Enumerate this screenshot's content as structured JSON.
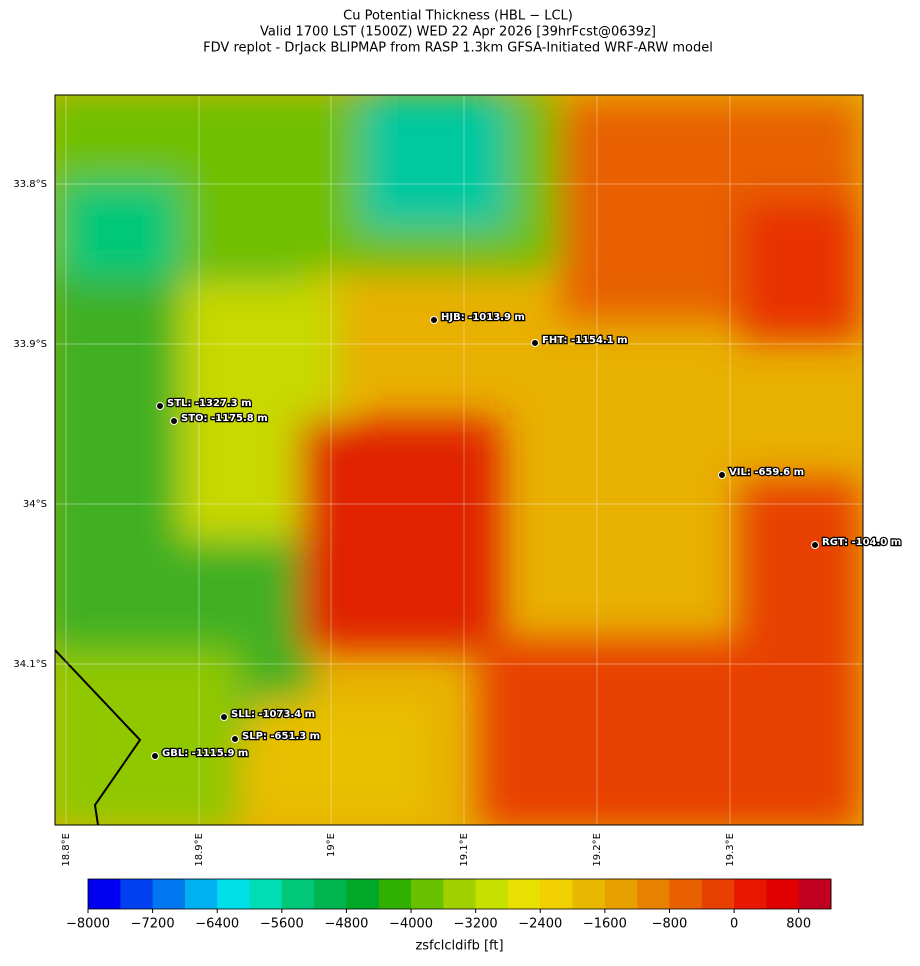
{
  "title": [
    "Cu Potential Thickness (HBL − LCL)",
    "Valid 1700 LST (1500Z) WED 22 Apr 2026 [39hrFcst@0639z]",
    "FDV replot - DrJack BLIPMAP from RASP 1.3km GFSA-Initiated WRF-ARW model"
  ],
  "lat_labels": [
    "33.8°S",
    "33.9°S",
    "34°S",
    "34.1°S"
  ],
  "lon_labels": [
    "18.8°E",
    "18.9°E",
    "19°E",
    "19.1°E",
    "19.2°E",
    "19.3°E"
  ],
  "stations": [
    "HJB: -1013.9 m",
    "FHT: -1154.1 m",
    "STL: -1327.3 m",
    "STO: -1175.8 m",
    "VIL: -659.6 m",
    "RGT: -104.0 m",
    "SLL: -1073.4 m",
    "SLP: -651.3 m",
    "GBL: -1115.9 m"
  ],
  "colorbar": {
    "lim": [
      -8000,
      1200
    ],
    "colors": [
      "#0000f0",
      "#0040f0",
      "#0078f0",
      "#00b0f0",
      "#00e0e8",
      "#00dcb4",
      "#00c878",
      "#00b450",
      "#00a828",
      "#30b000",
      "#68c000",
      "#a0d000",
      "#c8e000",
      "#e8e000",
      "#f0d000",
      "#e8b800",
      "#e8a000",
      "#e88000",
      "#e86000",
      "#e84000",
      "#e81800",
      "#e00000",
      "#c00020"
    ],
    "ticks": [
      {
        "value": -8000,
        "label": "−8000"
      },
      {
        "value": -7200,
        "label": "−7200"
      },
      {
        "value": -6400,
        "label": "−6400"
      },
      {
        "value": -5600,
        "label": "−5600"
      },
      {
        "value": -4800,
        "label": "−4800"
      },
      {
        "value": -4000,
        "label": "−4000"
      },
      {
        "value": -3200,
        "label": "−3200"
      },
      {
        "value": -2400,
        "label": "−2400"
      },
      {
        "value": -1600,
        "label": "−1600"
      },
      {
        "value": -800,
        "label": "−800"
      },
      0,
      800
    ],
    "label": "zsfclcldifb [ft]"
  }
}
